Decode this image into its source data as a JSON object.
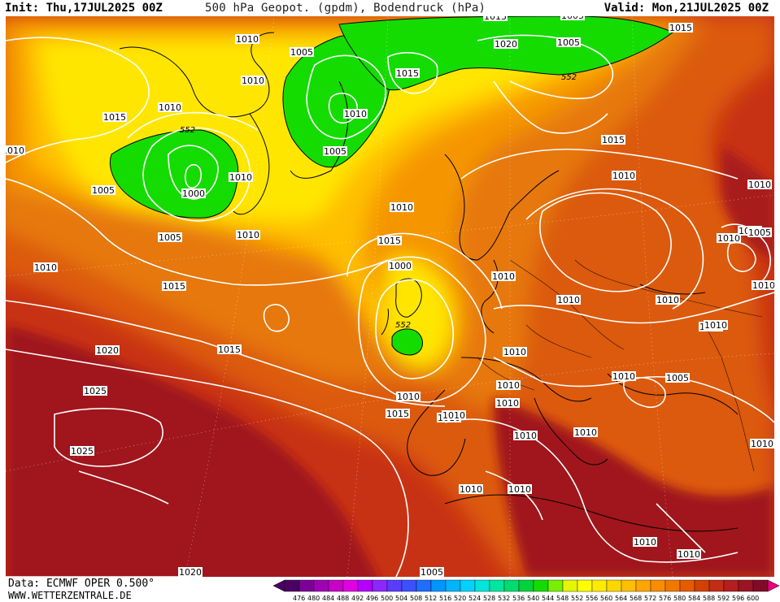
{
  "header": {
    "init": "Init: Thu,17JUL2025 00Z",
    "title": "500 hPa Geopot. (gpdm), Bodendruck (hPa)",
    "valid": "Valid: Mon,21JUL2025 00Z"
  },
  "footer": {
    "source": "Data: ECMWF OPER 0.500°",
    "site": "WWW.WETTERZENTRALE.DE"
  },
  "legend": {
    "ticks": [
      "476",
      "480",
      "484",
      "488",
      "492",
      "496",
      "500",
      "504",
      "508",
      "512",
      "516",
      "520",
      "524",
      "528",
      "532",
      "536",
      "540",
      "544",
      "548",
      "552",
      "556",
      "560",
      "564",
      "568",
      "572",
      "576",
      "580",
      "584",
      "588",
      "592",
      "596",
      "600"
    ],
    "colors": [
      "#4b0064",
      "#7d0096",
      "#a000b4",
      "#c800c8",
      "#e100e1",
      "#b400ff",
      "#8c28ff",
      "#5a3cff",
      "#3c50ff",
      "#1e6eff",
      "#0096ff",
      "#00b4ff",
      "#00d2ff",
      "#00e6dc",
      "#00e6a0",
      "#00dc6e",
      "#00d23c",
      "#14dc00",
      "#78f000",
      "#e6f500",
      "#ffff00",
      "#ffeb00",
      "#ffd700",
      "#ffbe00",
      "#ffa500",
      "#fa8c00",
      "#f07800",
      "#e65a00",
      "#d24100",
      "#c32d14",
      "#b41e1e",
      "#9b1423",
      "#820a28"
    ],
    "arrow_left_color": "#4b0064",
    "arrow_right_color": "#e6007d"
  },
  "map": {
    "contour_labels": [
      {
        "text": "552",
        "italic": true
      },
      {
        "text": "552",
        "italic": true
      },
      {
        "text": "552",
        "italic": true
      },
      {
        "text": "552",
        "italic": true
      }
    ],
    "isobar_labels": [
      "1015",
      "1010",
      "1015",
      "1015",
      "1005",
      "1005",
      "1015",
      "1020",
      "1005",
      "1015",
      "1010",
      "1010",
      "1010",
      "1015",
      "1010",
      "1000",
      "1005",
      "1010",
      "1005",
      "1015",
      "1015",
      "1010",
      "1010",
      "1005",
      "1010",
      "1010",
      "1000",
      "1010",
      "1015",
      "1010",
      "1020",
      "1015",
      "1010",
      "1010",
      "1010",
      "1005",
      "1025",
      "1015",
      "1010",
      "1010",
      "1025",
      "1010",
      "1010",
      "1005",
      "1010",
      "1010",
      "1010",
      "1020",
      "1010",
      "1005",
      "1010",
      "1010",
      "1010",
      "1010",
      "1010",
      "1005",
      "1010",
      "1010",
      "1010",
      "1010"
    ]
  }
}
